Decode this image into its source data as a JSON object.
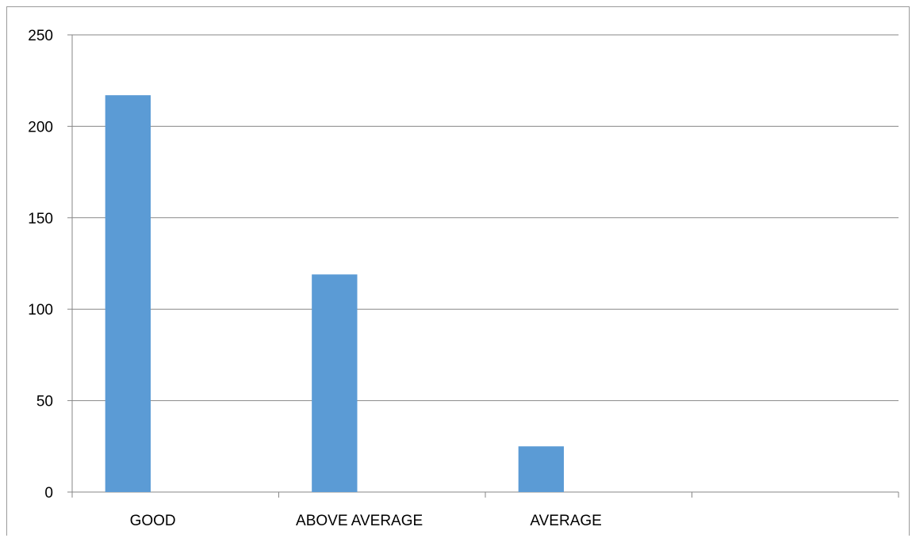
{
  "chart_data": {
    "type": "bar",
    "categories": [
      "GOOD",
      "ABOVE AVERAGE",
      "AVERAGE",
      ""
    ],
    "series": [
      {
        "values": [
          217,
          119,
          25,
          null
        ]
      }
    ],
    "ylim": [
      0,
      250
    ],
    "yticks": [
      0,
      50,
      100,
      150,
      200,
      250
    ],
    "grid": true,
    "legend": "none",
    "colors": {
      "bar": "#5b9bd5",
      "grid": "#878787",
      "axis": "#878787",
      "border": "#9a9a9a"
    }
  }
}
